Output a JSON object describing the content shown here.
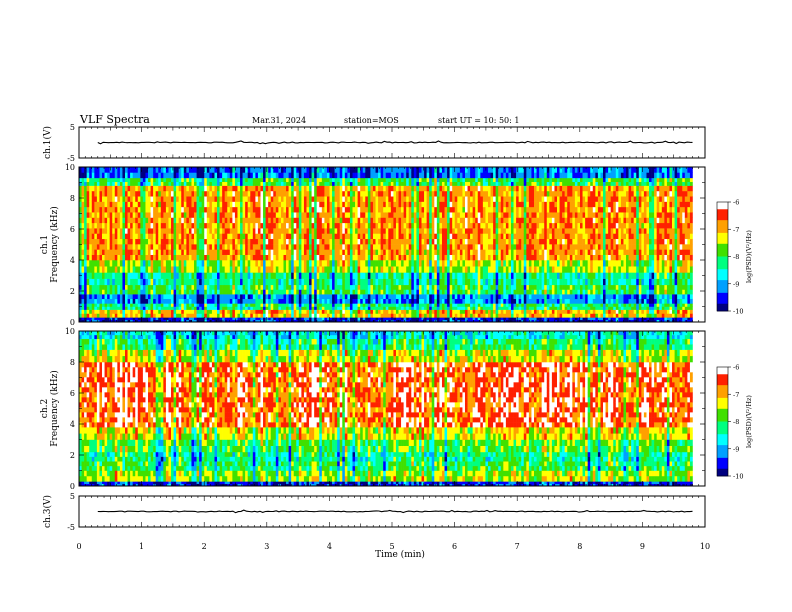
{
  "header": {
    "title": "VLF Spectra",
    "date": "Mar.31, 2024",
    "station": "station=MOS",
    "start": "start  UT =   10: 50: 1"
  },
  "colors": {
    "scale": [
      "#000080",
      "#0000ff",
      "#00a0ff",
      "#00ffff",
      "#00ff80",
      "#40e000",
      "#ffff00",
      "#ffa000",
      "#ff2000",
      "#ffffff"
    ]
  },
  "chart_data": [
    {
      "type": "line",
      "panel": "ch1-voltage",
      "ylabel": "ch.1(V)",
      "yticks": [
        "5",
        "-5"
      ],
      "ylim": [
        -5,
        5
      ],
      "xlim": [
        0,
        10
      ],
      "series": [
        {
          "x": [
            0.3,
            9.8
          ],
          "values": [
            0,
            0
          ]
        }
      ]
    },
    {
      "type": "heatmap",
      "panel": "ch1-spectrogram",
      "ylabel": "ch.1\nFrequency (kHz)",
      "yticks": [
        "0",
        "2",
        "4",
        "6",
        "8",
        "10"
      ],
      "ylim": [
        0,
        10
      ],
      "xlim": [
        0,
        10
      ],
      "data_x_range": [
        0,
        9.8
      ],
      "bands": [
        {
          "range": [
            0,
            0.3
          ],
          "level": 0.1
        },
        {
          "range": [
            0.3,
            0.8
          ],
          "level": 0.72
        },
        {
          "range": [
            0.8,
            1.2
          ],
          "level": 0.45
        },
        {
          "range": [
            1.2,
            1.8
          ],
          "level": 0.22
        },
        {
          "range": [
            1.8,
            2.4
          ],
          "level": 0.5
        },
        {
          "range": [
            2.4,
            3.2
          ],
          "level": 0.42
        },
        {
          "range": [
            3.2,
            4.0
          ],
          "level": 0.62
        },
        {
          "range": [
            4.0,
            8.8
          ],
          "level": 0.78
        },
        {
          "range": [
            8.8,
            9.3
          ],
          "level": 0.5
        },
        {
          "range": [
            9.3,
            10
          ],
          "level": 0.18
        }
      ],
      "colorbar": {
        "label": "log(PSD)(V²/Hz)",
        "ticks": [
          "-6",
          "-7",
          "-8",
          "-9",
          "-10"
        ],
        "range": [
          -10,
          -6
        ]
      }
    },
    {
      "type": "heatmap",
      "panel": "ch2-spectrogram",
      "ylabel": "ch.2\nFrequency (kHz)",
      "yticks": [
        "0",
        "2",
        "4",
        "6",
        "8",
        "10"
      ],
      "ylim": [
        0,
        10
      ],
      "xlim": [
        0,
        10
      ],
      "data_x_range": [
        0,
        9.8
      ],
      "bands": [
        {
          "range": [
            0,
            0.3
          ],
          "level": 0.1
        },
        {
          "range": [
            0.3,
            1.0
          ],
          "level": 0.6
        },
        {
          "range": [
            1.0,
            1.6
          ],
          "level": 0.48
        },
        {
          "range": [
            1.6,
            2.2
          ],
          "level": 0.42
        },
        {
          "range": [
            2.2,
            3.0
          ],
          "level": 0.52
        },
        {
          "range": [
            3.0,
            3.8
          ],
          "level": 0.66
        },
        {
          "range": [
            3.8,
            8.0
          ],
          "level": 0.86
        },
        {
          "range": [
            8.0,
            8.8
          ],
          "level": 0.64
        },
        {
          "range": [
            8.8,
            9.5
          ],
          "level": 0.45
        },
        {
          "range": [
            9.5,
            10
          ],
          "level": 0.33
        }
      ],
      "colorbar": {
        "label": "log(PSD)(V²/Hz)",
        "ticks": [
          "-6",
          "-7",
          "-8",
          "-9",
          "-10"
        ],
        "range": [
          -10,
          -6
        ]
      }
    },
    {
      "type": "line",
      "panel": "ch3-voltage",
      "ylabel": "ch.3(V)",
      "yticks": [
        "5",
        "-5"
      ],
      "ylim": [
        -5,
        5
      ],
      "xlim": [
        0,
        10
      ],
      "series": [
        {
          "x": [
            0.3,
            9.8
          ],
          "values": [
            0,
            0
          ]
        }
      ]
    }
  ],
  "xaxis": {
    "label": "Time  (min)",
    "ticks": [
      "0",
      "1",
      "2",
      "3",
      "4",
      "5",
      "6",
      "7",
      "8",
      "9",
      "10"
    ],
    "range": [
      0,
      10
    ]
  }
}
